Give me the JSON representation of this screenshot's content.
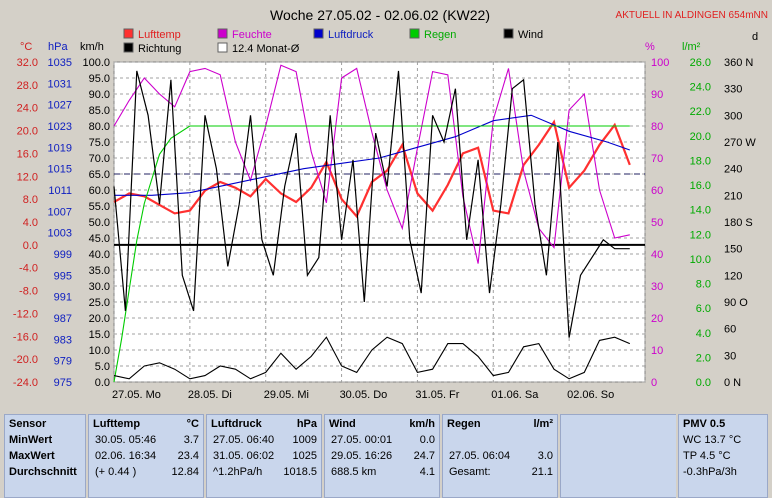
{
  "chart_data": {
    "type": "line",
    "title": "Woche 27.05.02 - 02.06.02 (KW22)",
    "subtitle": "AKTUELL IN ALDINGEN 654mNN",
    "axis_units": {
      "temp": "°C",
      "pressure": "hPa",
      "wind_kmh": "km/h",
      "humidity": "%",
      "rain": "l/m²",
      "wind_dir": "d"
    },
    "axes": {
      "temp": {
        "min": -24,
        "max": 32,
        "ticks": [
          "32.0",
          "28.0",
          "24.0",
          "20.0",
          "16.0",
          "12.0",
          "8.0",
          "4.0",
          "0.0",
          "-4.0",
          "-8.0",
          "-12.0",
          "-16.0",
          "-20.0",
          "-24.0"
        ]
      },
      "pressure": {
        "min": 975,
        "max": 1035,
        "ticks": [
          "1035",
          "1031",
          "1027",
          "1023",
          "1019",
          "1015",
          "1011",
          "1007",
          "1003",
          "999",
          "995",
          "991",
          "987",
          "983",
          "979",
          "975"
        ]
      },
      "wind_kmh": {
        "min": 0,
        "max": 100,
        "ticks": [
          "100.0",
          "95.0",
          "90.0",
          "85.0",
          "80.0",
          "75.0",
          "70.0",
          "65.0",
          "60.0",
          "55.0",
          "50.0",
          "45.0",
          "40.0",
          "35.0",
          "30.0",
          "25.0",
          "20.0",
          "15.0",
          "10.0",
          "5.0",
          "0.0"
        ]
      },
      "humidity": {
        "min": 0,
        "max": 100,
        "ticks": [
          "100",
          "90",
          "80",
          "70",
          "60",
          "50",
          "40",
          "30",
          "20",
          "10",
          "0"
        ]
      },
      "rain": {
        "min": 0,
        "max": 26,
        "ticks": [
          "26.0",
          "24.0",
          "22.0",
          "20.0",
          "18.0",
          "16.0",
          "14.0",
          "12.0",
          "10.0",
          "8.0",
          "6.0",
          "4.0",
          "2.0",
          "0.0"
        ]
      },
      "wind_dir": {
        "min": 0,
        "max": 360,
        "ticks": [
          "360 N",
          "330",
          "300",
          "270 W",
          "240",
          "210",
          "180 S",
          "150",
          "120",
          "90 O",
          "60",
          "30",
          "0 N"
        ]
      }
    },
    "x_ticks": [
      "27.05. Mo",
      "28.05. Di",
      "29.05. Mi",
      "30.05. Do",
      "31.05. Fr",
      "01.06. Sa",
      "02.06. So"
    ],
    "legend": [
      {
        "name": "Lufttemp",
        "color": "#ff3030"
      },
      {
        "name": "Feuchte",
        "color": "#cc00cc"
      },
      {
        "name": "Luftdruck",
        "color": "#0000cc"
      },
      {
        "name": "Regen",
        "color": "#00cc00"
      },
      {
        "name": "Wind",
        "color": "#000000"
      },
      {
        "name": "Richtung",
        "color": "#000000"
      },
      {
        "name": "12.4 Monat-Ø",
        "color": "#ffffff"
      }
    ],
    "monthly_avg_temp": 12.4,
    "series": [
      {
        "name": "Lufttemp",
        "axis": "temp",
        "color": "#ff3030",
        "x": [
          0,
          0.2,
          0.4,
          0.6,
          0.8,
          1.0,
          1.2,
          1.4,
          1.6,
          1.8,
          2.0,
          2.2,
          2.4,
          2.6,
          2.8,
          3.0,
          3.2,
          3.4,
          3.6,
          3.8,
          4.0,
          4.2,
          4.4,
          4.6,
          4.8,
          5.0,
          5.2,
          5.4,
          5.6,
          5.8,
          6.0,
          6.2,
          6.4,
          6.6,
          6.8
        ],
        "y": [
          7.5,
          9.0,
          8.5,
          7.0,
          5.5,
          6.0,
          9.5,
          11.0,
          10.0,
          8.5,
          11.5,
          9.0,
          7.5,
          10.0,
          14.5,
          8.0,
          5.0,
          11.0,
          13.0,
          17.5,
          9.0,
          6.0,
          10.5,
          16.0,
          17.0,
          6.0,
          5.5,
          14.0,
          17.5,
          21.5,
          10.0,
          13.0,
          17.5,
          21.0,
          14.0
        ]
      },
      {
        "name": "Feuchte",
        "axis": "humidity",
        "color": "#cc00cc",
        "x": [
          0,
          0.2,
          0.4,
          0.6,
          0.8,
          1.0,
          1.2,
          1.4,
          1.6,
          1.8,
          2.0,
          2.2,
          2.4,
          2.6,
          2.8,
          3.0,
          3.2,
          3.4,
          3.6,
          3.8,
          4.0,
          4.2,
          4.4,
          4.6,
          4.8,
          5.0,
          5.2,
          5.4,
          5.6,
          5.8,
          6.0,
          6.2,
          6.4,
          6.6,
          6.8
        ],
        "y": [
          80,
          88,
          95,
          90,
          86,
          97,
          98,
          96,
          75,
          63,
          80,
          99,
          97,
          72,
          56,
          95,
          98,
          78,
          60,
          48,
          73,
          97,
          96,
          58,
          37,
          82,
          98,
          66,
          48,
          42,
          85,
          90,
          60,
          45,
          46
        ]
      },
      {
        "name": "Luftdruck",
        "axis": "pressure",
        "color": "#0000cc",
        "x": [
          0,
          0.5,
          1.0,
          1.5,
          2.0,
          2.5,
          3.0,
          3.5,
          4.0,
          4.5,
          5.0,
          5.5,
          6.0,
          6.5,
          6.8
        ],
        "y": [
          1010,
          1010,
          1010.5,
          1012,
          1013.5,
          1015,
          1016,
          1017,
          1019,
          1021,
          1024,
          1025,
          1022,
          1020,
          1018.5
        ]
      },
      {
        "name": "Regen",
        "axis": "rain",
        "color": "#00cc00",
        "x": [
          0,
          0.1,
          0.2,
          0.3,
          0.4,
          0.5,
          0.6,
          0.75,
          1.0,
          6.8
        ],
        "y": [
          0,
          3.5,
          7.5,
          11.5,
          14.5,
          16.5,
          18.5,
          19.8,
          20.8,
          20.8
        ]
      },
      {
        "name": "Wind",
        "axis": "wind_kmh",
        "color": "#000000",
        "x": [
          0,
          0.2,
          0.4,
          0.6,
          0.8,
          1.0,
          1.2,
          1.4,
          1.6,
          1.8,
          2.0,
          2.2,
          2.4,
          2.6,
          2.8,
          3.0,
          3.2,
          3.4,
          3.6,
          3.8,
          4.0,
          4.2,
          4.4,
          4.6,
          4.8,
          5.0,
          5.2,
          5.4,
          5.6,
          5.8,
          6.0,
          6.2,
          6.4,
          6.6,
          6.8
        ],
        "y": [
          2,
          1,
          5,
          6,
          4,
          1,
          2,
          5,
          4,
          1,
          3,
          9,
          4,
          8,
          14,
          5,
          3,
          10,
          14,
          12,
          3,
          4,
          12,
          12,
          8,
          2,
          3,
          11,
          12,
          4,
          1,
          3,
          13,
          14,
          12
        ]
      },
      {
        "name": "Richtung",
        "axis": "wind_dir",
        "color": "#000000",
        "x": [
          0,
          0.15,
          0.3,
          0.45,
          0.6,
          0.75,
          0.9,
          1.05,
          1.2,
          1.35,
          1.5,
          1.65,
          1.8,
          1.95,
          2.1,
          2.25,
          2.4,
          2.55,
          2.7,
          2.85,
          3.0,
          3.15,
          3.3,
          3.45,
          3.6,
          3.75,
          3.9,
          4.05,
          4.2,
          4.35,
          4.5,
          4.65,
          4.8,
          4.95,
          5.1,
          5.25,
          5.4,
          5.55,
          5.7,
          5.85,
          6.0,
          6.15,
          6.3,
          6.45,
          6.6,
          6.8
        ],
        "y": [
          220,
          80,
          350,
          300,
          200,
          340,
          120,
          80,
          300,
          240,
          130,
          200,
          300,
          160,
          120,
          220,
          280,
          120,
          140,
          300,
          160,
          250,
          90,
          280,
          220,
          350,
          160,
          100,
          300,
          270,
          330,
          160,
          250,
          100,
          200,
          330,
          340,
          200,
          120,
          270,
          50,
          120,
          140,
          160,
          150,
          150
        ]
      }
    ]
  },
  "stats": {
    "sensor": {
      "header": "Sensor",
      "rows": [
        "MinWert",
        "MaxWert",
        "Durchschnitt"
      ]
    },
    "lufttemp": {
      "header": "Lufttemp",
      "unit": "°C",
      "rows": [
        {
          "left": "30.05.  05:46",
          "right": "3.7"
        },
        {
          "left": "02.06.  16:34",
          "right": "23.4"
        },
        {
          "left": "(+ 0.44 )",
          "right": "12.84"
        }
      ]
    },
    "luftdruck": {
      "header": "Luftdruck",
      "unit": "hPa",
      "rows": [
        {
          "left": "27.05.  06:40",
          "right": "1009"
        },
        {
          "left": "31.05.  06:02",
          "right": "1025"
        },
        {
          "left": "^1.2hPa/h",
          "right": "1018.5"
        }
      ]
    },
    "wind": {
      "header": "Wind",
      "unit": "km/h",
      "rows": [
        {
          "left": "27.05.  00:01",
          "right": "0.0"
        },
        {
          "left": "29.05.  16:26",
          "right": "24.7"
        },
        {
          "left": "688.5 km",
          "right": "4.1"
        }
      ]
    },
    "regen": {
      "header": "Regen",
      "unit": "l/m²",
      "rows": [
        {
          "left": "",
          "right": ""
        },
        {
          "left": "27.05.  06:04",
          "right": "3.0"
        },
        {
          "left": "Gesamt:",
          "right": "21.1"
        }
      ]
    },
    "pmv": {
      "header": "PMV 0.5",
      "rows": [
        "WC 13.7 °C",
        "TP 4.5 °C",
        "-0.3hPa/3h"
      ]
    }
  }
}
